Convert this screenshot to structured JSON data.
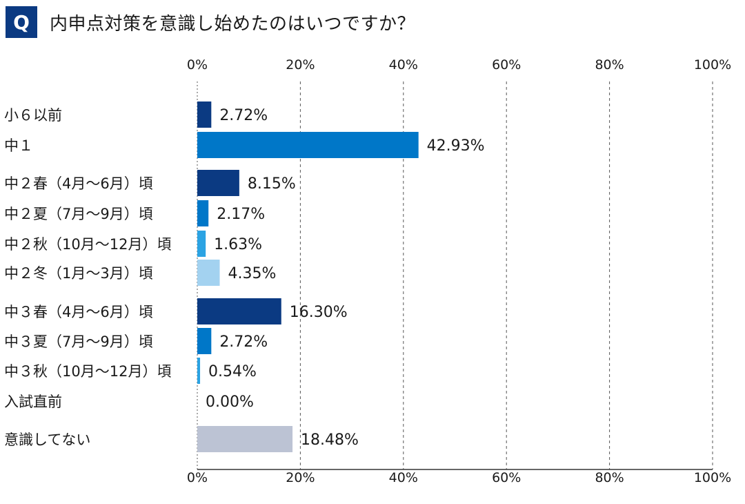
{
  "header": {
    "badge": "Q",
    "question": "内申点対策を意識し始めたのはいつですか？"
  },
  "chart_data": {
    "type": "bar",
    "orientation": "horizontal",
    "title": "内申点対策を意識し始めたのはいつですか？",
    "xlim": [
      0,
      100
    ],
    "ticks": [
      "0%",
      "20%",
      "40%",
      "60%",
      "80%",
      "100%"
    ],
    "tick_values": [
      0,
      20,
      40,
      60,
      80,
      100
    ],
    "grid": "dashed vertical",
    "axis_labels_top_and_bottom": true,
    "categories": [
      "小６以前",
      "中１",
      "中２春（4月〜6月）頃",
      "中２夏（7月〜9月）頃",
      "中２秋（10月〜12月）頃",
      "中２冬（1月〜3月）頃",
      "中３春（4月〜6月）頃",
      "中３夏（7月〜9月）頃",
      "中３秋（10月〜12月）頃",
      "入試直前",
      "意識してない"
    ],
    "values": [
      2.72,
      42.93,
      8.15,
      2.17,
      1.63,
      4.35,
      16.3,
      2.72,
      0.54,
      0.0,
      18.48
    ],
    "value_labels": [
      "2.72%",
      "42.93%",
      "8.15%",
      "2.17%",
      "1.63%",
      "4.35%",
      "16.30%",
      "2.72%",
      "0.54%",
      "0.00%",
      "18.48%"
    ],
    "colors": [
      "#0b3a82",
      "#0077c8",
      "#0b3a82",
      "#0077c8",
      "#2ba3e3",
      "#a3d2f0",
      "#0b3a82",
      "#0077c8",
      "#2ba3e3",
      "#a3d2f0",
      "#bcc3d4"
    ]
  }
}
